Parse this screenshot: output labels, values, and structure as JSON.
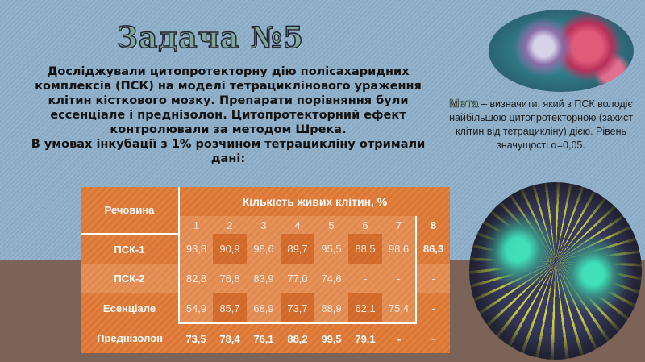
{
  "title": "Задача №5",
  "intro": "Досліджували цитопротекторну дію полісахаридних комплексів (ПСК) на моделі тетрациклінового ураження клітин кісткового мозку. Препарати порівняння були ессенціале і преднізолон. Цитопротекторний ефект контролювали за методом Шрека.\nВ умовах інкубації з 1% розчином тетрацикліну отримали дані:",
  "goal": {
    "highlight": "Мета",
    "text": " – визначити, який з ПСК володіє найбільшою цитопротекторною (захист клітин від тетрацикліну) дією. Рівень значущості α=0,05."
  },
  "table": {
    "substance_header": "Речовина",
    "group_header": "Кількість живих клітин, %",
    "columns": [
      "1",
      "2",
      "3",
      "4",
      "5",
      "6",
      "7",
      "8"
    ],
    "rows": [
      {
        "name": "ПСК-1",
        "values": [
          "93,8",
          "90,9",
          "98,6",
          "89,7",
          "95,5",
          "88,5",
          "98,6",
          "86,3"
        ]
      },
      {
        "name": "ПСК-2",
        "values": [
          "82,8",
          "76,8",
          "83,9",
          "77,0",
          "74,6",
          "-",
          "-",
          "-"
        ]
      },
      {
        "name": "Есенціале",
        "values": [
          "54,9",
          "85,7",
          "68,9",
          "73,7",
          "88,9",
          "62,1",
          "75,4",
          "-"
        ]
      },
      {
        "name": "Преднізолон",
        "values": [
          "73,5",
          "78,4",
          "76,1",
          "88,2",
          "99,5",
          "79,1",
          "-",
          "-"
        ]
      }
    ]
  }
}
